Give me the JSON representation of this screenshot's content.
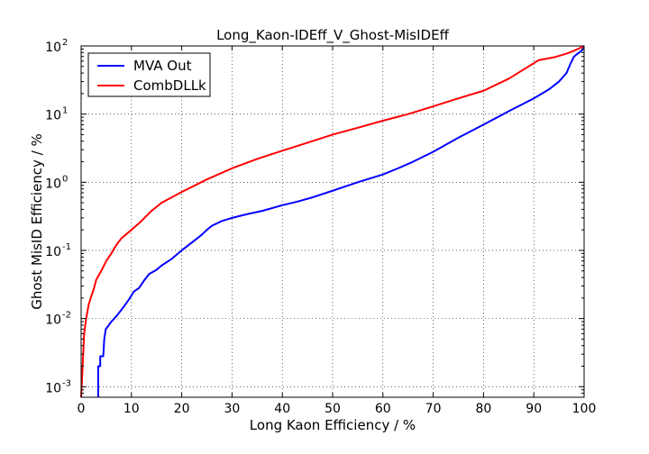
{
  "chart_data": {
    "type": "line",
    "title": "Long_Kaon-IDEff_V_Ghost-MisIDEff",
    "xlabel": "Long Kaon Efficiency / %",
    "ylabel": "Ghost MisID Efficiency / %",
    "xlim": [
      0,
      100
    ],
    "ylim": [
      0.0007,
      100
    ],
    "yscale": "log",
    "grid": true,
    "legend_position": "top-left",
    "x_ticks": [
      "0",
      "10",
      "20",
      "30",
      "40",
      "50",
      "60",
      "70",
      "80",
      "90",
      "100"
    ],
    "y_ticks": [
      {
        "base": "10",
        "exp": "-3",
        "value": 0.001
      },
      {
        "base": "10",
        "exp": "-2",
        "value": 0.01
      },
      {
        "base": "10",
        "exp": "-1",
        "value": 0.1
      },
      {
        "base": "10",
        "exp": "0",
        "value": 1
      },
      {
        "base": "10",
        "exp": "1",
        "value": 10
      },
      {
        "base": "10",
        "exp": "2",
        "value": 100
      }
    ],
    "series": [
      {
        "name": "MVA Out",
        "color": "#0000ff",
        "points": [
          [
            3.4,
            0.0007
          ],
          [
            3.4,
            0.002
          ],
          [
            3.8,
            0.002
          ],
          [
            3.8,
            0.0028
          ],
          [
            4.4,
            0.0028
          ],
          [
            4.6,
            0.005
          ],
          [
            4.9,
            0.007
          ],
          [
            5.5,
            0.008
          ],
          [
            6.0,
            0.009
          ],
          [
            6.6,
            0.01
          ],
          [
            7.5,
            0.012
          ],
          [
            8.5,
            0.015
          ],
          [
            9.5,
            0.019
          ],
          [
            10.5,
            0.025
          ],
          [
            11.5,
            0.028
          ],
          [
            12.5,
            0.036
          ],
          [
            13.5,
            0.045
          ],
          [
            15,
            0.052
          ],
          [
            16,
            0.06
          ],
          [
            18,
            0.075
          ],
          [
            20,
            0.1
          ],
          [
            22,
            0.13
          ],
          [
            24,
            0.17
          ],
          [
            25,
            0.2
          ],
          [
            26,
            0.23
          ],
          [
            28,
            0.27
          ],
          [
            30,
            0.3
          ],
          [
            33,
            0.34
          ],
          [
            36,
            0.38
          ],
          [
            40,
            0.46
          ],
          [
            43,
            0.52
          ],
          [
            46,
            0.6
          ],
          [
            50,
            0.75
          ],
          [
            55,
            1.0
          ],
          [
            60,
            1.3
          ],
          [
            63,
            1.6
          ],
          [
            66,
            2.0
          ],
          [
            70,
            2.8
          ],
          [
            75,
            4.5
          ],
          [
            80,
            7.0
          ],
          [
            85,
            11
          ],
          [
            90,
            17
          ],
          [
            93,
            23
          ],
          [
            95,
            30
          ],
          [
            96.5,
            40
          ],
          [
            97.3,
            55
          ],
          [
            98,
            70
          ],
          [
            98.8,
            78
          ],
          [
            99.5,
            85
          ],
          [
            100,
            95
          ]
        ]
      },
      {
        "name": "CombDLLk",
        "color": "#ff0000",
        "points": [
          [
            0,
            0.0007
          ],
          [
            0.3,
            0.002
          ],
          [
            0.6,
            0.006
          ],
          [
            1,
            0.01
          ],
          [
            1.5,
            0.016
          ],
          [
            2,
            0.021
          ],
          [
            2.5,
            0.027
          ],
          [
            3,
            0.037
          ],
          [
            4,
            0.05
          ],
          [
            5,
            0.07
          ],
          [
            6,
            0.09
          ],
          [
            7,
            0.12
          ],
          [
            8,
            0.15
          ],
          [
            10,
            0.2
          ],
          [
            12,
            0.27
          ],
          [
            14,
            0.38
          ],
          [
            16,
            0.5
          ],
          [
            20,
            0.72
          ],
          [
            25,
            1.1
          ],
          [
            30,
            1.6
          ],
          [
            35,
            2.2
          ],
          [
            40,
            2.9
          ],
          [
            45,
            3.8
          ],
          [
            50,
            5.0
          ],
          [
            55,
            6.3
          ],
          [
            60,
            8.0
          ],
          [
            65,
            10
          ],
          [
            70,
            13
          ],
          [
            75,
            17
          ],
          [
            80,
            22
          ],
          [
            85,
            33
          ],
          [
            91,
            62
          ],
          [
            94,
            68
          ],
          [
            96.5,
            77
          ],
          [
            98,
            85
          ],
          [
            99,
            92
          ],
          [
            100,
            100
          ]
        ]
      }
    ]
  }
}
